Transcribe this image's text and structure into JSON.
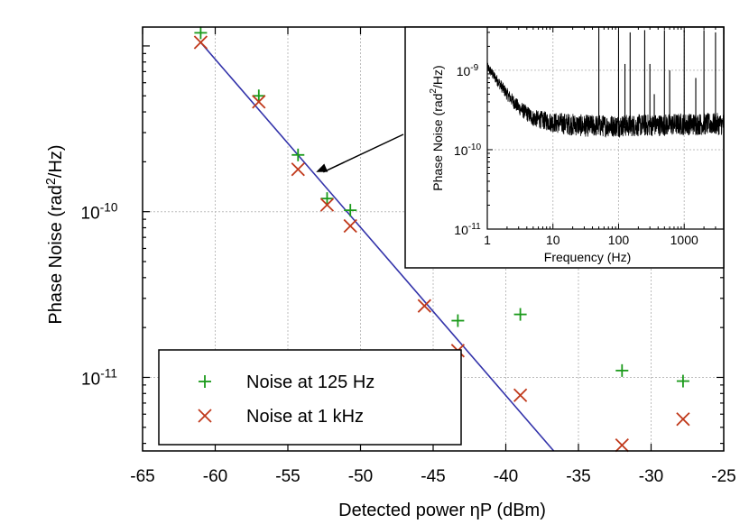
{
  "chart_data": [
    {
      "type": "scatter",
      "xlabel": "Detected power ηP (dBm)",
      "ylabel_parts": [
        "Phase Noise (rad",
        "2",
        "/Hz)"
      ],
      "xlim": [
        -65,
        -25
      ],
      "ylim": [
        3.6e-12,
        1.3e-09
      ],
      "yscale": "log",
      "grid": true,
      "x_ticks": [
        -65,
        -60,
        -55,
        -50,
        -45,
        -40,
        -35,
        -30,
        -25
      ],
      "y_ticks": [
        {
          "value": 1e-10,
          "base": "10",
          "exp": "-10"
        },
        {
          "value": 1e-11,
          "base": "10",
          "exp": "-11"
        }
      ],
      "legend_position": "bottom-left",
      "series": [
        {
          "name": "Noise at 125 Hz",
          "marker": "plus",
          "color": "#1a9a1a",
          "points": [
            [
              -61.0,
              1.2e-09
            ],
            [
              -57.0,
              5e-10
            ],
            [
              -54.3,
              2.2e-10
            ],
            [
              -52.3,
              1.2e-10
            ],
            [
              -50.7,
              1.02e-10
            ],
            [
              -43.3,
              2.2e-11
            ],
            [
              -39.0,
              2.4e-11
            ],
            [
              -32.0,
              1.1e-11
            ],
            [
              -27.8,
              9.5e-12
            ]
          ]
        },
        {
          "name": "Noise at 1 kHz",
          "marker": "cross",
          "color": "#c0391b",
          "points": [
            [
              -61.0,
              1.05e-09
            ],
            [
              -57.0,
              4.6e-10
            ],
            [
              -54.3,
              1.8e-10
            ],
            [
              -52.3,
              1.1e-10
            ],
            [
              -50.7,
              8.2e-11
            ],
            [
              -45.6,
              2.7e-11
            ],
            [
              -43.3,
              1.45e-11
            ],
            [
              -39.0,
              7.8e-12
            ],
            [
              -32.0,
              3.9e-12
            ],
            [
              -27.8,
              5.6e-12
            ]
          ]
        }
      ],
      "fit_line": {
        "color": "#3333aa",
        "points": [
          [
            -61.0,
            1.05e-09
          ],
          [
            -36.7,
            3.6e-12
          ]
        ]
      },
      "annotation": {
        "type": "arrow",
        "from_series_point": [
          -54.3,
          1.8e-10
        ],
        "to": "inset"
      }
    },
    {
      "type": "line",
      "role": "inset",
      "xlabel": "Frequency (Hz)",
      "ylabel_parts": [
        "Phase Noise (rad",
        "2",
        "/Hz)"
      ],
      "xscale": "log",
      "yscale": "log",
      "xlim": [
        1,
        4000
      ],
      "ylim": [
        1e-11,
        3.5e-09
      ],
      "grid": true,
      "x_ticks": [
        1,
        10,
        100,
        1000
      ],
      "y_ticks": [
        {
          "value": 1e-09,
          "base": "10",
          "exp": "-9"
        },
        {
          "value": 1e-10,
          "base": "10",
          "exp": "-10"
        },
        {
          "value": 1e-11,
          "base": "10",
          "exp": "-11"
        }
      ],
      "color": "#000000",
      "series": [
        {
          "trend": [
            [
              1,
              1.1e-09
            ],
            [
              1.5,
              7e-10
            ],
            [
              2,
              5e-10
            ],
            [
              3,
              3.4e-10
            ],
            [
              5,
              2.5e-10
            ],
            [
              10,
              2.2e-10
            ],
            [
              30,
              2e-10
            ],
            [
              100,
              2e-10
            ],
            [
              500,
              2.05e-10
            ],
            [
              1000,
              2.1e-10
            ],
            [
              4000,
              2.1e-10
            ]
          ],
          "spikes": [
            [
              50,
              3.3e-09
            ],
            [
              100,
              3.2e-09
            ],
            [
              125,
              1.2e-09
            ],
            [
              150,
              3e-09
            ],
            [
              250,
              3.2e-09
            ],
            [
              300,
              1.2e-09
            ],
            [
              350,
              5e-10
            ],
            [
              500,
              3.2e-09
            ],
            [
              600,
              1e-09
            ],
            [
              1000,
              3.2e-09
            ],
            [
              1500,
              8e-10
            ],
            [
              2000,
              3.2e-09
            ],
            [
              3000,
              3e-09
            ]
          ]
        }
      ]
    }
  ]
}
